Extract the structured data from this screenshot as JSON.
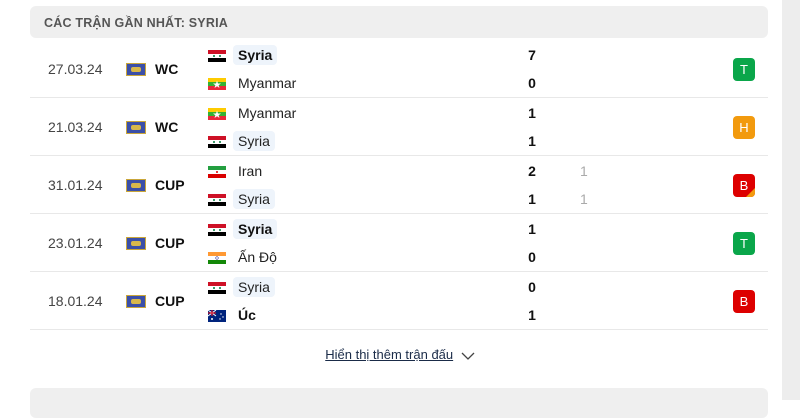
{
  "header": {
    "title": "CÁC TRẬN GẦN NHẤT: SYRIA"
  },
  "colors": {
    "win": "#0aa64a",
    "draw": "#f29a0e",
    "loss": "#dd0000"
  },
  "matches": [
    {
      "date": "27.03.24",
      "league": "WC",
      "league_icon": "world-map-icon",
      "home": {
        "name": "Syria",
        "flag": "syria",
        "score": "7",
        "bold": true,
        "hl": true
      },
      "away": {
        "name": "Myanmar",
        "flag": "myanmar",
        "score": "0"
      },
      "result": "T",
      "result_type": "win"
    },
    {
      "date": "21.03.24",
      "league": "WC",
      "league_icon": "world-map-icon",
      "home": {
        "name": "Myanmar",
        "flag": "myanmar",
        "score": "1"
      },
      "away": {
        "name": "Syria",
        "flag": "syria",
        "score": "1",
        "hl": true
      },
      "result": "H",
      "result_type": "draw"
    },
    {
      "date": "31.01.24",
      "league": "CUP",
      "league_icon": "world-map-icon",
      "home": {
        "name": "Iran",
        "flag": "iran",
        "score": "2",
        "pen": "1"
      },
      "away": {
        "name": "Syria",
        "flag": "syria",
        "score": "1",
        "pen": "1",
        "hl": true
      },
      "result": "B",
      "result_type": "loss-penalty"
    },
    {
      "date": "23.01.24",
      "league": "CUP",
      "league_icon": "world-map-icon",
      "home": {
        "name": "Syria",
        "flag": "syria",
        "score": "1",
        "bold": true,
        "hl": true
      },
      "away": {
        "name": "Ấn Độ",
        "flag": "india",
        "score": "0"
      },
      "result": "T",
      "result_type": "win"
    },
    {
      "date": "18.01.24",
      "league": "CUP",
      "league_icon": "world-map-icon",
      "home": {
        "name": "Syria",
        "flag": "syria",
        "score": "0",
        "hl": true
      },
      "away": {
        "name": "Úc",
        "flag": "australia",
        "score": "1",
        "bold": true
      },
      "result": "B",
      "result_type": "loss"
    }
  ],
  "show_more": {
    "label": "Hiển thị thêm trận đấu",
    "icon": "chevron-down-icon"
  }
}
